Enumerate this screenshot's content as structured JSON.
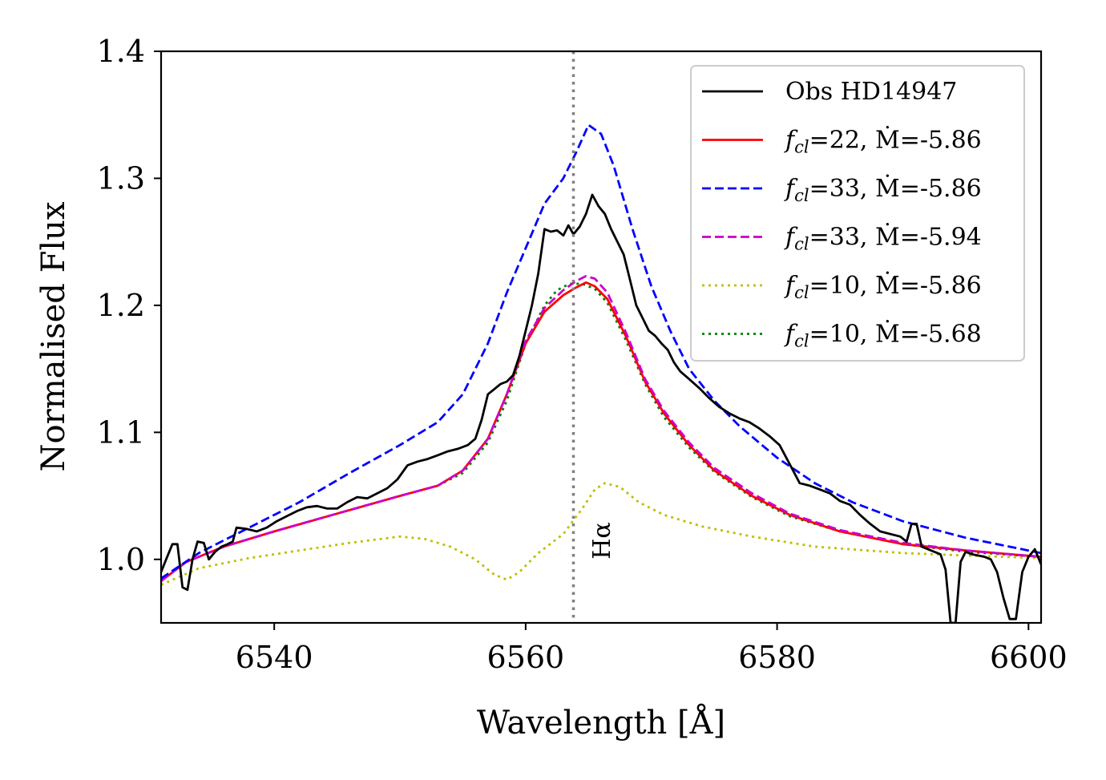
{
  "chart_data": {
    "type": "line",
    "title": "",
    "xlabel": "Wavelength [Å]",
    "ylabel": "Normalised Flux",
    "xlim": [
      6531,
      6601
    ],
    "ylim": [
      0.95,
      1.4
    ],
    "xticks": [
      6540,
      6560,
      6580,
      6600
    ],
    "yticks": [
      1.0,
      1.1,
      1.2,
      1.3,
      1.4
    ],
    "grid": false,
    "legend_position": "top-right",
    "vline": {
      "x": 6563.8,
      "color": "#808080",
      "style": "dotted"
    },
    "annotations": [
      {
        "text": "Hα",
        "x": 6566.7,
        "y": 1.0,
        "rotation": -90
      }
    ],
    "series": [
      {
        "name": "Obs HD14947",
        "color": "#000000",
        "style": "solid",
        "points": [
          [
            6531,
            0.99
          ],
          [
            6531.4,
            1.0
          ],
          [
            6531.9,
            1.012
          ],
          [
            6532.3,
            1.012
          ],
          [
            6532.7,
            0.978
          ],
          [
            6533.1,
            0.976
          ],
          [
            6533.5,
            1.0
          ],
          [
            6533.9,
            1.014
          ],
          [
            6534.4,
            1.013
          ],
          [
            6534.8,
            1.0
          ],
          [
            6535.3,
            1.006
          ],
          [
            6535.8,
            1.01
          ],
          [
            6536.3,
            1.012
          ],
          [
            6536.7,
            1.014
          ],
          [
            6537.0,
            1.025
          ],
          [
            6537.8,
            1.024
          ],
          [
            6538.6,
            1.022
          ],
          [
            6539.4,
            1.025
          ],
          [
            6540.2,
            1.03
          ],
          [
            6541.0,
            1.034
          ],
          [
            6541.8,
            1.038
          ],
          [
            6542.6,
            1.041
          ],
          [
            6543.4,
            1.042
          ],
          [
            6544.2,
            1.04
          ],
          [
            6545.0,
            1.04
          ],
          [
            6545.8,
            1.045
          ],
          [
            6546.6,
            1.049
          ],
          [
            6547.4,
            1.048
          ],
          [
            6548.2,
            1.052
          ],
          [
            6549.0,
            1.056
          ],
          [
            6549.8,
            1.063
          ],
          [
            6550.6,
            1.074
          ],
          [
            6551.4,
            1.077
          ],
          [
            6552.2,
            1.079
          ],
          [
            6553.0,
            1.082
          ],
          [
            6553.8,
            1.085
          ],
          [
            6554.6,
            1.087
          ],
          [
            6555.4,
            1.09
          ],
          [
            6556.0,
            1.095
          ],
          [
            6556.5,
            1.11
          ],
          [
            6557.0,
            1.13
          ],
          [
            6557.5,
            1.134
          ],
          [
            6558.0,
            1.138
          ],
          [
            6558.5,
            1.14
          ],
          [
            6559.0,
            1.145
          ],
          [
            6559.5,
            1.16
          ],
          [
            6560.0,
            1.18
          ],
          [
            6560.5,
            1.2
          ],
          [
            6561.0,
            1.225
          ],
          [
            6561.5,
            1.26
          ],
          [
            6562.0,
            1.258
          ],
          [
            6562.5,
            1.259
          ],
          [
            6563.0,
            1.255
          ],
          [
            6563.4,
            1.263
          ],
          [
            6563.8,
            1.256
          ],
          [
            6564.3,
            1.262
          ],
          [
            6564.8,
            1.272
          ],
          [
            6565.3,
            1.287
          ],
          [
            6565.8,
            1.278
          ],
          [
            6566.3,
            1.272
          ],
          [
            6566.8,
            1.26
          ],
          [
            6567.3,
            1.25
          ],
          [
            6567.8,
            1.24
          ],
          [
            6568.3,
            1.22
          ],
          [
            6568.8,
            1.2
          ],
          [
            6569.3,
            1.19
          ],
          [
            6569.8,
            1.18
          ],
          [
            6570.3,
            1.176
          ],
          [
            6570.8,
            1.17
          ],
          [
            6571.3,
            1.165
          ],
          [
            6571.8,
            1.155
          ],
          [
            6572.3,
            1.148
          ],
          [
            6573.0,
            1.142
          ],
          [
            6573.8,
            1.135
          ],
          [
            6574.6,
            1.127
          ],
          [
            6575.4,
            1.12
          ],
          [
            6576.2,
            1.115
          ],
          [
            6577.0,
            1.111
          ],
          [
            6577.8,
            1.108
          ],
          [
            6578.6,
            1.103
          ],
          [
            6579.4,
            1.097
          ],
          [
            6580.2,
            1.09
          ],
          [
            6581.0,
            1.075
          ],
          [
            6581.8,
            1.06
          ],
          [
            6582.6,
            1.058
          ],
          [
            6583.4,
            1.055
          ],
          [
            6584.2,
            1.052
          ],
          [
            6585.0,
            1.046
          ],
          [
            6585.8,
            1.043
          ],
          [
            6586.6,
            1.035
          ],
          [
            6587.4,
            1.028
          ],
          [
            6588.2,
            1.022
          ],
          [
            6589.0,
            1.02
          ],
          [
            6589.8,
            1.018
          ],
          [
            6590.3,
            1.014
          ],
          [
            6590.7,
            1.028
          ],
          [
            6591.1,
            1.028
          ],
          [
            6591.5,
            1.01
          ],
          [
            6592.0,
            1.008
          ],
          [
            6592.5,
            1.006
          ],
          [
            6593.0,
            1.004
          ],
          [
            6593.4,
            0.992
          ],
          [
            6593.8,
            0.95
          ],
          [
            6594.2,
            0.95
          ],
          [
            6594.6,
            0.998
          ],
          [
            6595.0,
            1.006
          ],
          [
            6595.5,
            1.004
          ],
          [
            6596.0,
            1.003
          ],
          [
            6596.5,
            1.002
          ],
          [
            6597.0,
            1.0
          ],
          [
            6597.5,
            0.99
          ],
          [
            6598.0,
            0.97
          ],
          [
            6598.5,
            0.953
          ],
          [
            6599.0,
            0.953
          ],
          [
            6599.5,
            0.99
          ],
          [
            6600.0,
            1.002
          ],
          [
            6600.5,
            1.008
          ],
          [
            6601,
            0.996
          ]
        ]
      },
      {
        "name": "f_cl=22, Ṁ=-5.86",
        "color": "#ff0000",
        "style": "solid",
        "points": [
          [
            6531,
            0.983
          ],
          [
            6533,
            0.998
          ],
          [
            6536,
            1.01
          ],
          [
            6540,
            1.022
          ],
          [
            6545,
            1.036
          ],
          [
            6550,
            1.05
          ],
          [
            6553,
            1.058
          ],
          [
            6555,
            1.07
          ],
          [
            6557,
            1.095
          ],
          [
            6558.5,
            1.13
          ],
          [
            6560,
            1.17
          ],
          [
            6561.5,
            1.195
          ],
          [
            6563,
            1.208
          ],
          [
            6564,
            1.214
          ],
          [
            6564.8,
            1.218
          ],
          [
            6565.5,
            1.215
          ],
          [
            6566.5,
            1.205
          ],
          [
            6568,
            1.175
          ],
          [
            6569.5,
            1.14
          ],
          [
            6571,
            1.115
          ],
          [
            6573,
            1.09
          ],
          [
            6575,
            1.07
          ],
          [
            6578,
            1.05
          ],
          [
            6581,
            1.035
          ],
          [
            6585,
            1.022
          ],
          [
            6590,
            1.012
          ],
          [
            6595,
            1.007
          ],
          [
            6601,
            1.002
          ]
        ]
      },
      {
        "name": "f_cl=33, Ṁ=-5.86",
        "color": "#0000ff",
        "style": "dashed",
        "points": [
          [
            6531,
            0.985
          ],
          [
            6534,
            1.005
          ],
          [
            6538,
            1.025
          ],
          [
            6542,
            1.045
          ],
          [
            6546,
            1.068
          ],
          [
            6550,
            1.09
          ],
          [
            6553,
            1.108
          ],
          [
            6555,
            1.13
          ],
          [
            6557,
            1.17
          ],
          [
            6558.5,
            1.21
          ],
          [
            6560,
            1.245
          ],
          [
            6561.5,
            1.28
          ],
          [
            6563,
            1.3
          ],
          [
            6564,
            1.32
          ],
          [
            6565,
            1.342
          ],
          [
            6566,
            1.335
          ],
          [
            6567,
            1.31
          ],
          [
            6568.5,
            1.26
          ],
          [
            6570,
            1.215
          ],
          [
            6571.5,
            1.18
          ],
          [
            6573,
            1.15
          ],
          [
            6575,
            1.125
          ],
          [
            6577,
            1.105
          ],
          [
            6580,
            1.08
          ],
          [
            6583,
            1.06
          ],
          [
            6586,
            1.045
          ],
          [
            6590,
            1.03
          ],
          [
            6595,
            1.017
          ],
          [
            6601,
            1.005
          ]
        ]
      },
      {
        "name": "f_cl=33, Ṁ=-5.94",
        "color": "#cc00cc",
        "style": "dashed",
        "points": [
          [
            6531,
            0.983
          ],
          [
            6533,
            0.998
          ],
          [
            6536,
            1.01
          ],
          [
            6540,
            1.022
          ],
          [
            6545,
            1.036
          ],
          [
            6550,
            1.05
          ],
          [
            6553,
            1.058
          ],
          [
            6555,
            1.07
          ],
          [
            6557,
            1.095
          ],
          [
            6558.5,
            1.13
          ],
          [
            6560,
            1.172
          ],
          [
            6561.5,
            1.198
          ],
          [
            6563,
            1.212
          ],
          [
            6564,
            1.219
          ],
          [
            6564.8,
            1.223
          ],
          [
            6565.5,
            1.221
          ],
          [
            6566.5,
            1.21
          ],
          [
            6568,
            1.178
          ],
          [
            6569.5,
            1.142
          ],
          [
            6571,
            1.117
          ],
          [
            6573,
            1.092
          ],
          [
            6575,
            1.072
          ],
          [
            6578,
            1.052
          ],
          [
            6581,
            1.036
          ],
          [
            6585,
            1.023
          ],
          [
            6590,
            1.013
          ],
          [
            6595,
            1.007
          ],
          [
            6601,
            1.002
          ]
        ]
      },
      {
        "name": "f_cl=10, Ṁ=-5.86",
        "color": "#bfbf00",
        "style": "dotted",
        "points": [
          [
            6531,
            0.98
          ],
          [
            6534,
            0.993
          ],
          [
            6538,
            1.001
          ],
          [
            6542,
            1.007
          ],
          [
            6546,
            1.013
          ],
          [
            6550,
            1.018
          ],
          [
            6552,
            1.016
          ],
          [
            6554,
            1.01
          ],
          [
            6556,
            1.0
          ],
          [
            6557.5,
            0.988
          ],
          [
            6558.5,
            0.984
          ],
          [
            6559.5,
            0.99
          ],
          [
            6561,
            1.005
          ],
          [
            6563,
            1.02
          ],
          [
            6564.5,
            1.04
          ],
          [
            6565.5,
            1.055
          ],
          [
            6566.3,
            1.06
          ],
          [
            6567.5,
            1.057
          ],
          [
            6569,
            1.045
          ],
          [
            6571,
            1.035
          ],
          [
            6574,
            1.026
          ],
          [
            6578,
            1.018
          ],
          [
            6583,
            1.01
          ],
          [
            6590,
            1.005
          ],
          [
            6595,
            1.003
          ],
          [
            6601,
            1.001
          ]
        ]
      },
      {
        "name": "f_cl=10, Ṁ=-5.68",
        "color": "#008000",
        "style": "dotted",
        "points": [
          [
            6531,
            0.983
          ],
          [
            6533,
            0.998
          ],
          [
            6536,
            1.01
          ],
          [
            6540,
            1.022
          ],
          [
            6545,
            1.036
          ],
          [
            6550,
            1.05
          ],
          [
            6553,
            1.058
          ],
          [
            6555,
            1.068
          ],
          [
            6557,
            1.092
          ],
          [
            6558.5,
            1.125
          ],
          [
            6560,
            1.17
          ],
          [
            6561.5,
            1.2
          ],
          [
            6562.5,
            1.212
          ],
          [
            6563.5,
            1.217
          ],
          [
            6564.5,
            1.217
          ],
          [
            6565.5,
            1.213
          ],
          [
            6566.5,
            1.202
          ],
          [
            6568,
            1.172
          ],
          [
            6569.5,
            1.138
          ],
          [
            6571,
            1.112
          ],
          [
            6573,
            1.088
          ],
          [
            6575,
            1.069
          ],
          [
            6578,
            1.049
          ],
          [
            6581,
            1.034
          ],
          [
            6585,
            1.022
          ],
          [
            6590,
            1.012
          ],
          [
            6595,
            1.006
          ],
          [
            6601,
            1.002
          ]
        ]
      }
    ]
  },
  "legend": [
    {
      "type": "plain",
      "text": "Obs HD14947"
    },
    {
      "type": "fcl",
      "fcl": "22",
      "mdot": "-5.86"
    },
    {
      "type": "fcl",
      "fcl": "33",
      "mdot": "-5.86"
    },
    {
      "type": "fcl",
      "fcl": "33",
      "mdot": "-5.94"
    },
    {
      "type": "fcl",
      "fcl": "10",
      "mdot": "-5.86"
    },
    {
      "type": "fcl",
      "fcl": "10",
      "mdot": "-5.68"
    }
  ]
}
